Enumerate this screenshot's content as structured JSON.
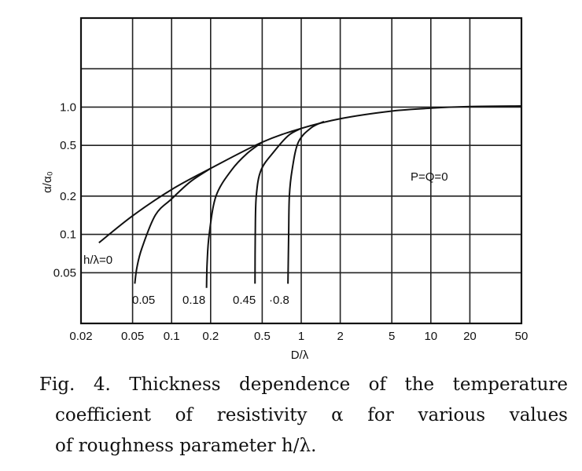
{
  "chart_data": {
    "type": "line",
    "scale": "log-log",
    "xlabel": "D/λ",
    "ylabel": "α/α₀",
    "xlim": [
      0.02,
      50
    ],
    "ylim": [
      0.02,
      5
    ],
    "x_ticks": [
      0.02,
      0.05,
      0.1,
      0.2,
      0.5,
      1,
      2,
      5,
      10,
      20,
      50
    ],
    "x_tick_labels": [
      "0.02",
      "0.05",
      "0.1",
      "0.2",
      "0.5",
      "1",
      "2",
      "5",
      "10",
      "20",
      "50"
    ],
    "y_gridlines": [
      0.05,
      0.1,
      0.2,
      0.5,
      1,
      2
    ],
    "y_ticks": [
      1.0,
      0.5,
      0.2,
      0.1,
      0.05
    ],
    "y_tick_labels": [
      "1.0",
      "0.5",
      "0.2",
      "0.1",
      "0.05"
    ],
    "grid": true,
    "annotation": "P=Q=0",
    "series": [
      {
        "name": "h/λ=0",
        "label": "h/λ=0",
        "x": [
          0.0275,
          0.05,
          0.1,
          0.2,
          0.5,
          1,
          2,
          5,
          10,
          20,
          50
        ],
        "y": [
          0.086,
          0.14,
          0.225,
          0.33,
          0.53,
          0.68,
          0.81,
          0.93,
          0.98,
          1.01,
          1.02
        ]
      },
      {
        "name": "h/λ=0.05",
        "label": "0.05",
        "x": [
          0.052,
          0.054,
          0.059,
          0.075,
          0.1,
          0.14,
          0.2
        ],
        "y": [
          0.041,
          0.055,
          0.078,
          0.142,
          0.19,
          0.26,
          0.33
        ]
      },
      {
        "name": "h/λ=0.18",
        "label": "0.18",
        "x": [
          0.186,
          0.188,
          0.195,
          0.22,
          0.29,
          0.38,
          0.5
        ],
        "y": [
          0.038,
          0.06,
          0.1,
          0.2,
          0.32,
          0.43,
          0.53
        ]
      },
      {
        "name": "h/λ=0.45",
        "label": "0.45",
        "x": [
          0.44,
          0.442,
          0.45,
          0.49,
          0.62,
          0.8,
          1.0
        ],
        "y": [
          0.041,
          0.1,
          0.2,
          0.32,
          0.45,
          0.6,
          0.68
        ]
      },
      {
        "name": "h/λ=0.8",
        "label": "·0.8",
        "x": [
          0.79,
          0.8,
          0.81,
          0.85,
          0.95,
          1.2,
          1.5
        ],
        "y": [
          0.041,
          0.1,
          0.2,
          0.32,
          0.53,
          0.69,
          0.77
        ]
      }
    ]
  },
  "caption": {
    "line1": "Fig. 4.  Thickness dependence of the temperature",
    "line2": "coefficient of resistivity α for various values",
    "line3": "of roughness parameter h/λ."
  }
}
